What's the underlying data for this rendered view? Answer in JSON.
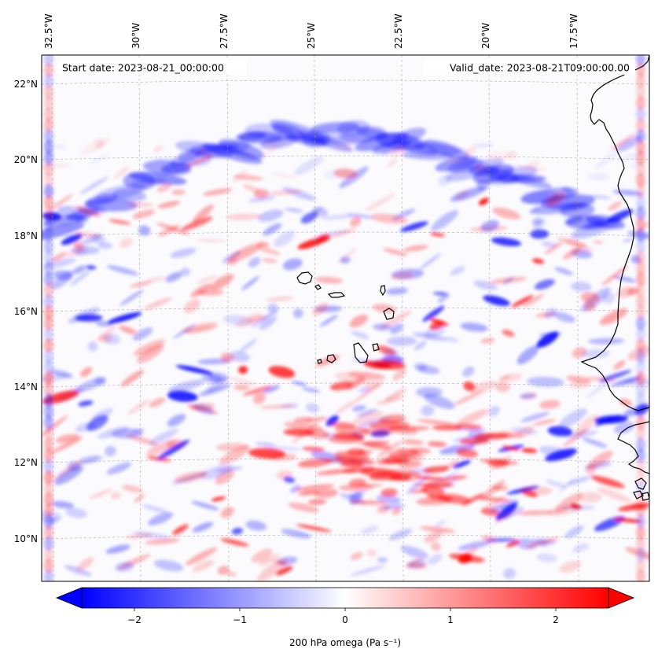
{
  "map": {
    "start_date": "Start date: 2023-08-21_00:00:00",
    "valid_date": "Valid_date: 2023-08-21T09:00:00.00",
    "lon_labels": [
      "32.5°W",
      "30°W",
      "27.5°W",
      "25°W",
      "22.5°W",
      "20°W",
      "17.5°W"
    ],
    "lat_labels": [
      "22°N",
      "20°N",
      "18°N",
      "16°N",
      "14°N",
      "12°N",
      "10°N"
    ],
    "colors": {
      "negative": "#0000ff",
      "neutral": "#ffffff",
      "positive": "#ff0000",
      "coastline": "#000000"
    }
  },
  "colorbar": {
    "label": "200 hPa omega (Pa s⁻¹)",
    "ticks": [
      "−2",
      "−1",
      "0",
      "1",
      "2"
    ],
    "range": [
      -2.6,
      2.6
    ],
    "extend": "both"
  }
}
